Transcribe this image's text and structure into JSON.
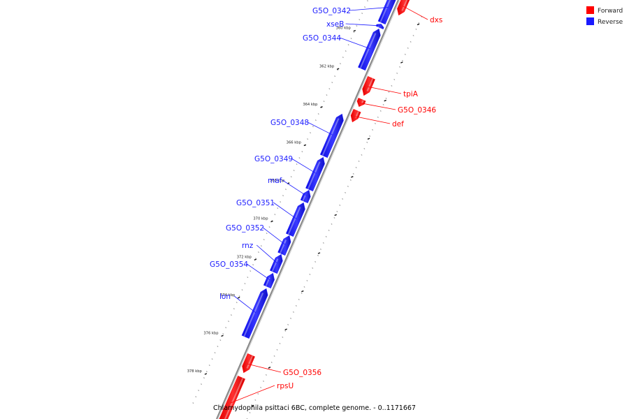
{
  "caption": "Chlamydophila psittaci 6BC, complete genome. - 0..1171667",
  "legend": {
    "forward": {
      "label": "Forward",
      "color": "#ff0000"
    },
    "reverse": {
      "label": "Reverse",
      "color": "#1a1aff"
    }
  },
  "colors": {
    "backbone": "#8a8a8a",
    "tick_major": "#111111",
    "tick_minor": "#9a9a9a"
  },
  "ticks": [
    {
      "kbp": 360,
      "label": "360 kbp"
    },
    {
      "kbp": 362,
      "label": "362 kbp"
    },
    {
      "kbp": 364,
      "label": "364 kbp"
    },
    {
      "kbp": 366,
      "label": "366 kbp"
    },
    {
      "kbp": 368,
      "label": "368 kbp"
    },
    {
      "kbp": 370,
      "label": "370 kbp"
    },
    {
      "kbp": 372,
      "label": "372 kbp"
    },
    {
      "kbp": 374,
      "label": "374 kbp"
    },
    {
      "kbp": 376,
      "label": "376 kbp"
    },
    {
      "kbp": 378,
      "label": "378 kbp"
    }
  ],
  "genes": [
    {
      "name": "dxs",
      "strand": "forward"
    },
    {
      "name": "G5O_0342",
      "strand": "reverse"
    },
    {
      "name": "xseB",
      "strand": "reverse"
    },
    {
      "name": "G5O_0344",
      "strand": "reverse"
    },
    {
      "name": "tpiA",
      "strand": "forward"
    },
    {
      "name": "G5O_0346",
      "strand": "forward"
    },
    {
      "name": "def",
      "strand": "forward"
    },
    {
      "name": "G5O_0348",
      "strand": "reverse"
    },
    {
      "name": "G5O_0349",
      "strand": "reverse"
    },
    {
      "name": "maf",
      "strand": "reverse"
    },
    {
      "name": "G5O_0351",
      "strand": "reverse"
    },
    {
      "name": "G5O_0352",
      "strand": "reverse"
    },
    {
      "name": "rnz",
      "strand": "reverse"
    },
    {
      "name": "G5O_0354",
      "strand": "reverse"
    },
    {
      "name": "lon",
      "strand": "reverse"
    },
    {
      "name": "G5O_0356",
      "strand": "forward"
    },
    {
      "name": "rpsU",
      "strand": "forward"
    }
  ]
}
